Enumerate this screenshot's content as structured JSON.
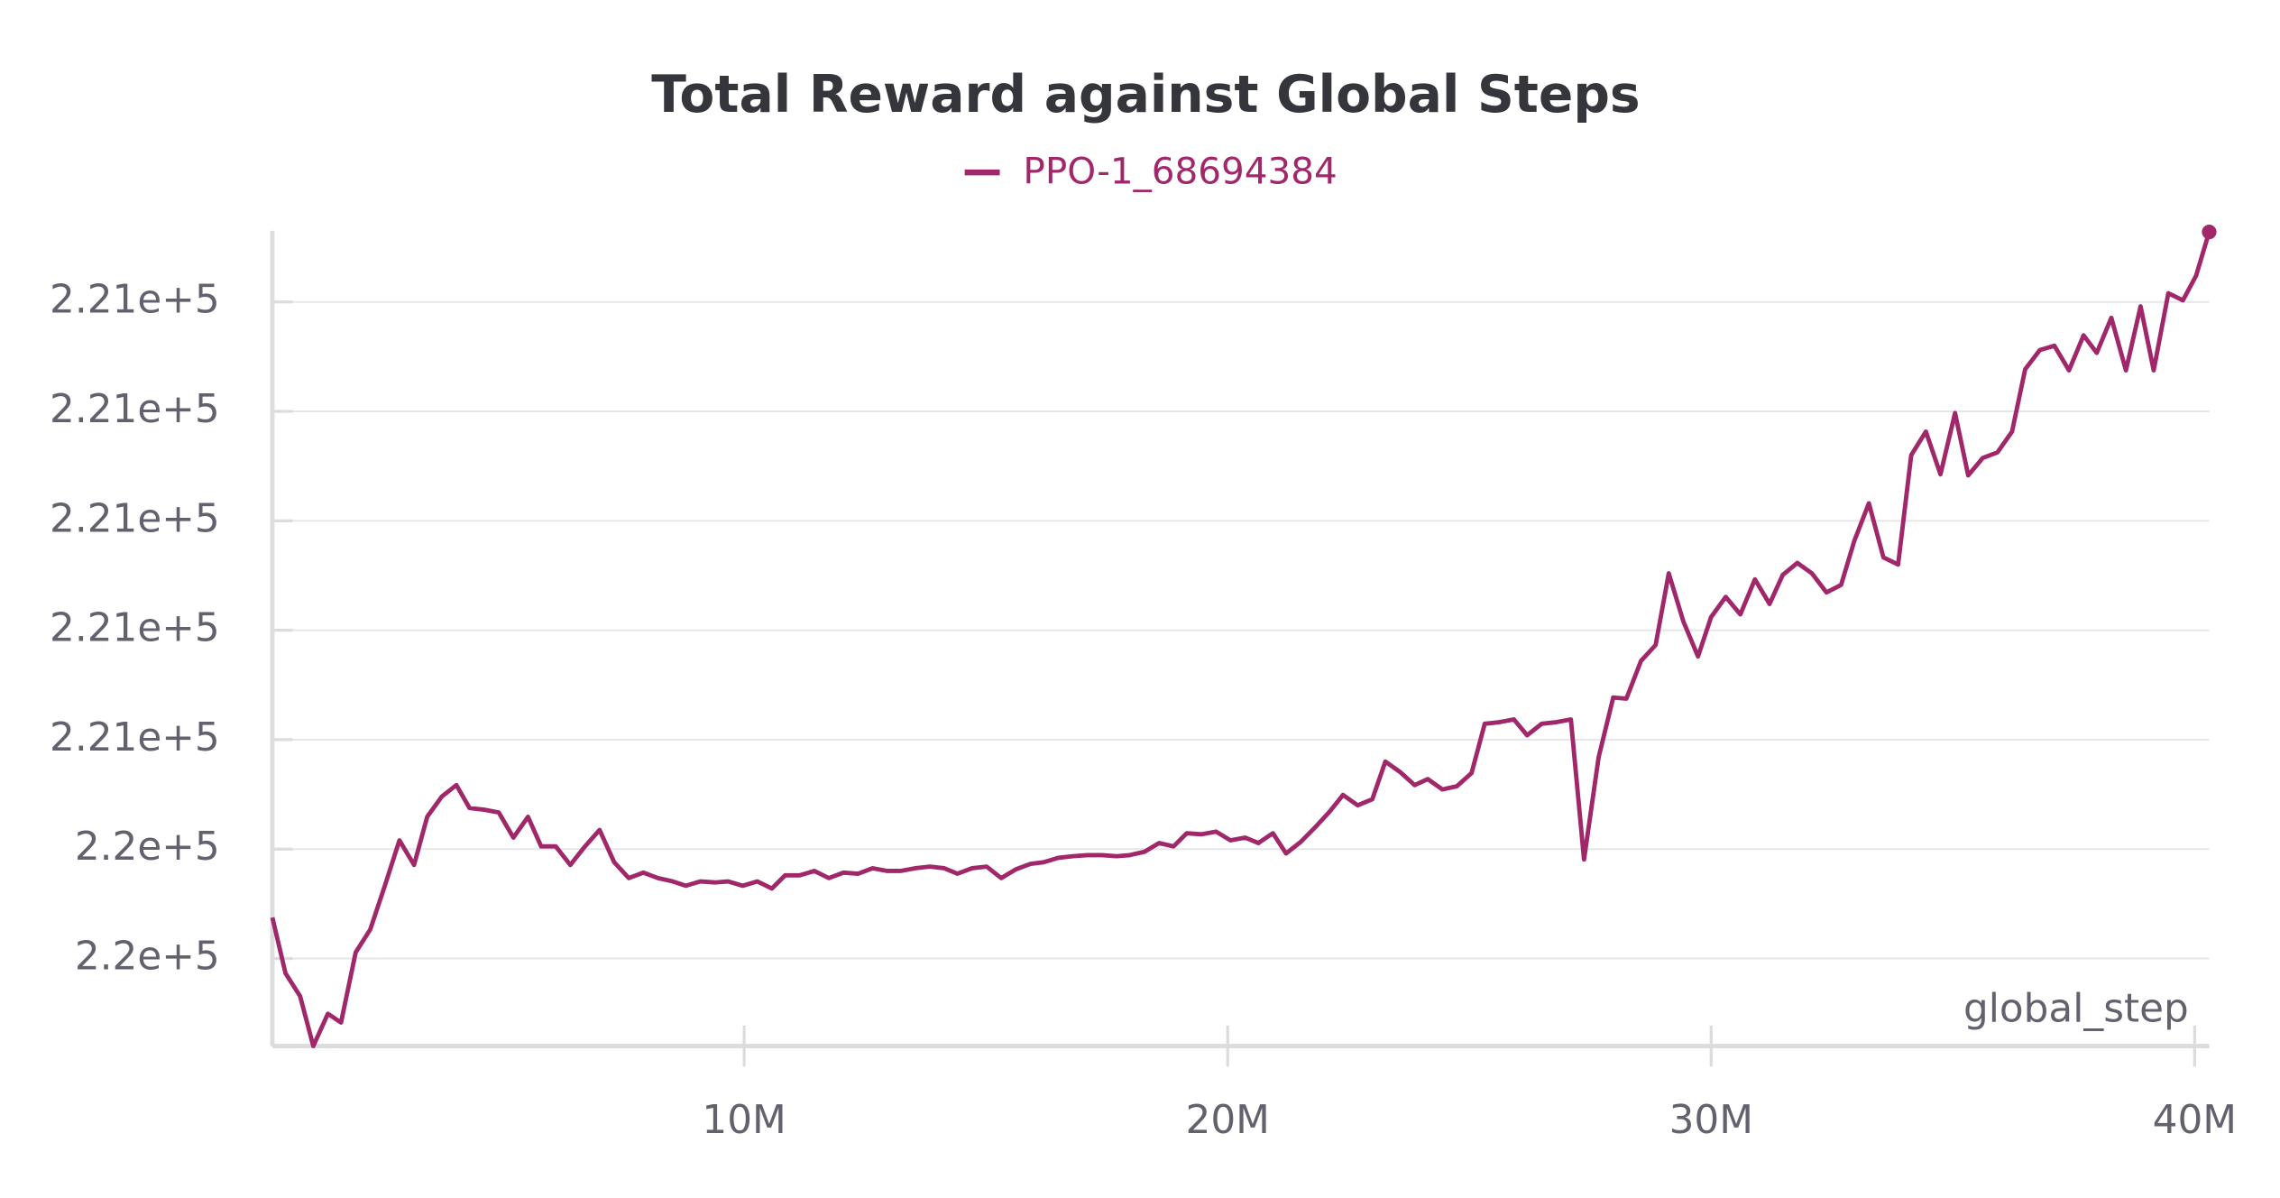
{
  "chart_data": {
    "type": "line",
    "title": "Total Reward against Global Steps",
    "x_label": "global_step",
    "xlim": [
      242000,
      40301000
    ],
    "xticks": [
      {
        "value": 10000000,
        "label": "10M"
      },
      {
        "value": 20000000,
        "label": "20M"
      },
      {
        "value": 30000000,
        "label": "30M"
      },
      {
        "value": 40000000,
        "label": "40M"
      }
    ],
    "ylim": [
      220454,
      220603
    ],
    "yticks": [
      {
        "value": 220470,
        "label": "2.2e+5"
      },
      {
        "value": 220490,
        "label": "2.2e+5"
      },
      {
        "value": 220510,
        "label": "2.21e+5"
      },
      {
        "value": 220530,
        "label": "2.21e+5"
      },
      {
        "value": 220550,
        "label": "2.21e+5"
      },
      {
        "value": 220570,
        "label": "2.21e+5"
      },
      {
        "value": 220590,
        "label": "2.21e+5"
      }
    ],
    "grid": true,
    "x": [
      242000,
      514000,
      816000,
      1088000,
      1390000,
      1662000,
      1964000,
      2266000,
      2568000,
      2870000,
      3172000,
      3444000,
      3746000,
      4048000,
      4320000,
      4622000,
      4924000,
      5227000,
      5529000,
      5801000,
      6103000,
      6405000,
      6707000,
      7009000,
      7311000,
      7613000,
      7915000,
      8217000,
      8520000,
      8791000,
      9094000,
      9396000,
      9668000,
      9970000,
      10272000,
      10574000,
      10846000,
      11148000,
      11450000,
      11752000,
      12054000,
      12356000,
      12658000,
      12961000,
      13232000,
      13535000,
      13837000,
      14139000,
      14411000,
      14713000,
      15015000,
      15317000,
      15619000,
      15921000,
      16193000,
      16495000,
      16797000,
      17099000,
      17402000,
      17704000,
      17976000,
      18278000,
      18580000,
      18882000,
      19154000,
      19456000,
      19758000,
      20060000,
      20362000,
      20634000,
      20936000,
      21208000,
      21510000,
      21812000,
      22114000,
      22386000,
      22688000,
      22991000,
      23262000,
      23565000,
      23867000,
      24139000,
      24441000,
      24743000,
      25045000,
      25317000,
      25619000,
      25921000,
      26193000,
      26495000,
      26797000,
      27099000,
      27371000,
      27673000,
      27975000,
      28247000,
      28549000,
      28852000,
      29123000,
      29426000,
      29728000,
      29999000,
      30302000,
      30604000,
      30906000,
      31208000,
      31480000,
      31782000,
      32084000,
      32386000,
      32688000,
      32960000,
      33262000,
      33564000,
      33867000,
      34138000,
      34441000,
      34743000,
      35045000,
      35317000,
      35619000,
      35921000,
      36223000,
      36495000,
      36797000,
      37099000,
      37401000,
      37703000,
      37975000,
      38277000,
      38579000,
      38882000,
      39153000,
      39456000,
      39758000,
      40030000,
      40301000
    ],
    "series": [
      {
        "name": "PPO-1_68694384",
        "color": "#a0286a",
        "values": [
          220477.5,
          220467.3,
          220463.1,
          220454.0,
          220459.9,
          220458.3,
          220471.1,
          220475.3,
          220483.3,
          220491.6,
          220487.1,
          220495.9,
          220499.6,
          220501.7,
          220497.5,
          220497.2,
          220496.7,
          220492.1,
          220495.9,
          220490.5,
          220490.5,
          220487.1,
          220490.5,
          220493.5,
          220487.6,
          220484.7,
          220485.7,
          220484.7,
          220484.1,
          220483.3,
          220484.1,
          220483.9,
          220484.1,
          220483.3,
          220484.1,
          220482.8,
          220485.2,
          220485.2,
          220486.0,
          220484.7,
          220485.7,
          220485.5,
          220486.5,
          220486.0,
          220486.0,
          220486.5,
          220486.8,
          220486.5,
          220485.5,
          220486.5,
          220486.8,
          220484.7,
          220486.3,
          220487.3,
          220487.6,
          220488.4,
          220488.7,
          220488.9,
          220488.9,
          220488.7,
          220488.9,
          220489.5,
          220491.1,
          220490.5,
          220492.9,
          220492.7,
          220493.2,
          220491.6,
          220492.1,
          220491.1,
          220492.9,
          220489.2,
          220491.3,
          220494.0,
          220496.9,
          220499.9,
          220498.0,
          220499.1,
          220506.0,
          220504.1,
          220501.7,
          220502.8,
          220500.9,
          220501.5,
          220503.9,
          220512.9,
          220513.2,
          220513.7,
          220510.8,
          220512.9,
          220513.2,
          220513.7,
          220488.1,
          220506.8,
          220517.7,
          220517.5,
          220524.4,
          220527.3,
          220540.4,
          220531.6,
          220525.2,
          220532.4,
          220536.1,
          220532.9,
          220539.3,
          220534.8,
          220540.1,
          220542.3,
          220540.4,
          220536.9,
          220538.3,
          220546.3,
          220553.2,
          220543.3,
          220542.0,
          220562.0,
          220566.3,
          220558.5,
          220569.7,
          220558.3,
          220561.5,
          220562.5,
          220566.3,
          220577.7,
          220581.2,
          220582.0,
          220577.5,
          220583.9,
          220580.7,
          220587.1,
          220577.5,
          220589.2,
          220577.5,
          220591.6,
          220590.3,
          220594.8,
          220602.8
        ]
      }
    ]
  }
}
